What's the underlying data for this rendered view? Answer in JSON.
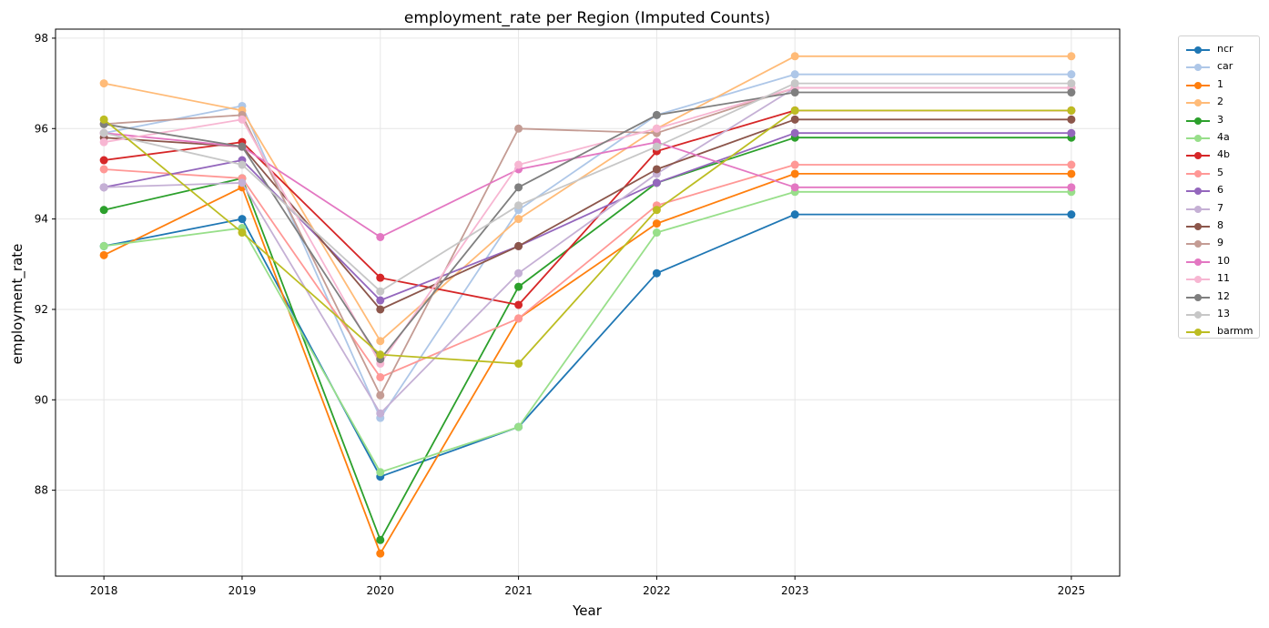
{
  "chart_data": {
    "type": "line",
    "title": "employment_rate per Region (Imputed Counts)",
    "xlabel": "Year",
    "ylabel": "employment_rate",
    "x": [
      2018,
      2019,
      2020,
      2021,
      2022,
      2023,
      2025
    ],
    "xlim": [
      2017.65,
      2025.35
    ],
    "ylim": [
      86.1,
      98.2
    ],
    "yticks": [
      88,
      90,
      92,
      94,
      96,
      98
    ],
    "grid": true,
    "legend_position": "outside-right",
    "series": [
      {
        "name": "ncr",
        "color": "#1f77b4",
        "values": [
          93.4,
          94.0,
          88.3,
          89.4,
          92.8,
          94.1,
          94.1
        ]
      },
      {
        "name": "car",
        "color": "#aec7e8",
        "values": [
          95.9,
          96.5,
          89.6,
          94.2,
          96.3,
          97.2,
          97.2
        ]
      },
      {
        "name": "1",
        "color": "#ff7f0e",
        "values": [
          93.2,
          94.7,
          86.6,
          91.8,
          93.9,
          95.0,
          95.0
        ]
      },
      {
        "name": "2",
        "color": "#ffbb78",
        "values": [
          97.0,
          96.4,
          91.3,
          94.0,
          96.0,
          97.6,
          97.6
        ]
      },
      {
        "name": "3",
        "color": "#2ca02c",
        "values": [
          94.2,
          94.9,
          86.9,
          92.5,
          94.8,
          95.8,
          95.8
        ]
      },
      {
        "name": "4a",
        "color": "#98df8a",
        "values": [
          93.4,
          93.8,
          88.4,
          89.4,
          93.7,
          94.6,
          94.6
        ]
      },
      {
        "name": "4b",
        "color": "#d62728",
        "values": [
          95.3,
          95.7,
          92.7,
          92.1,
          95.5,
          96.4,
          96.4
        ]
      },
      {
        "name": "5",
        "color": "#ff9896",
        "values": [
          95.1,
          94.9,
          90.5,
          91.8,
          94.3,
          95.2,
          95.2
        ]
      },
      {
        "name": "6",
        "color": "#9467bd",
        "values": [
          94.7,
          95.3,
          92.2,
          93.4,
          94.8,
          95.9,
          95.9
        ]
      },
      {
        "name": "7",
        "color": "#c5b0d5",
        "values": [
          94.7,
          94.8,
          89.7,
          92.8,
          95.0,
          96.9,
          96.9
        ]
      },
      {
        "name": "8",
        "color": "#8c564b",
        "values": [
          95.8,
          95.6,
          92.0,
          93.4,
          95.1,
          96.2,
          96.2
        ]
      },
      {
        "name": "9",
        "color": "#c49c94",
        "values": [
          96.1,
          96.3,
          90.1,
          96.0,
          95.9,
          96.9,
          96.9
        ]
      },
      {
        "name": "10",
        "color": "#e377c2",
        "values": [
          95.9,
          95.6,
          93.6,
          95.1,
          95.7,
          94.7,
          94.7
        ]
      },
      {
        "name": "11",
        "color": "#f7b6d2",
        "values": [
          95.7,
          96.2,
          90.8,
          95.2,
          96.0,
          96.9,
          96.9
        ]
      },
      {
        "name": "12",
        "color": "#7f7f7f",
        "values": [
          96.1,
          95.6,
          90.9,
          94.7,
          96.3,
          96.8,
          96.8
        ]
      },
      {
        "name": "13",
        "color": "#c7c7c7",
        "values": [
          95.9,
          95.2,
          92.4,
          94.3,
          95.6,
          97.0,
          97.0
        ]
      },
      {
        "name": "barmm",
        "color": "#bcbd22",
        "values": [
          96.2,
          93.7,
          91.0,
          90.8,
          94.2,
          96.4,
          96.4
        ]
      }
    ]
  }
}
